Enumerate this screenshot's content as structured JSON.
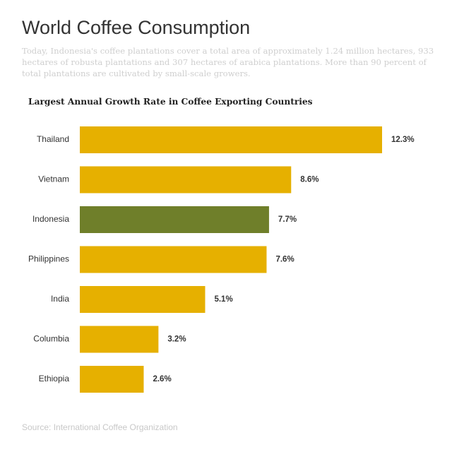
{
  "header": {
    "title": "World Coffee Consumption",
    "subtitle": "Today, Indonesia's coffee plantations cover a total area of approximately 1.24 million hectares, 933 hectares of robusta plantations and 307 hectares of arabica plantations. More than 90 percent of total plantations are cultivated by small-scale growers."
  },
  "footer": {
    "source": "Source: International Coffee Organization"
  },
  "colors": {
    "bar_default": "#e6b000",
    "bar_highlight": "#6f7f2a",
    "category_label": "#333333",
    "value_label": "#333333"
  },
  "chart_data": {
    "type": "bar",
    "orientation": "horizontal",
    "title": "Largest Annual Growth Rate in Coffee Exporting Countries",
    "categories": [
      "Thailand",
      "Vietnam",
      "Indonesia",
      "Philippines",
      "India",
      "Columbia",
      "Ethiopia"
    ],
    "values": [
      12.3,
      8.6,
      7.7,
      7.6,
      5.1,
      3.2,
      2.6
    ],
    "value_labels": [
      "12.3%",
      "8.6%",
      "7.7%",
      "7.6%",
      "5.1%",
      "3.2%",
      "2.6%"
    ],
    "highlight": "Indonesia",
    "xlim": [
      0,
      12.3
    ],
    "grid": false,
    "legend": "none"
  }
}
